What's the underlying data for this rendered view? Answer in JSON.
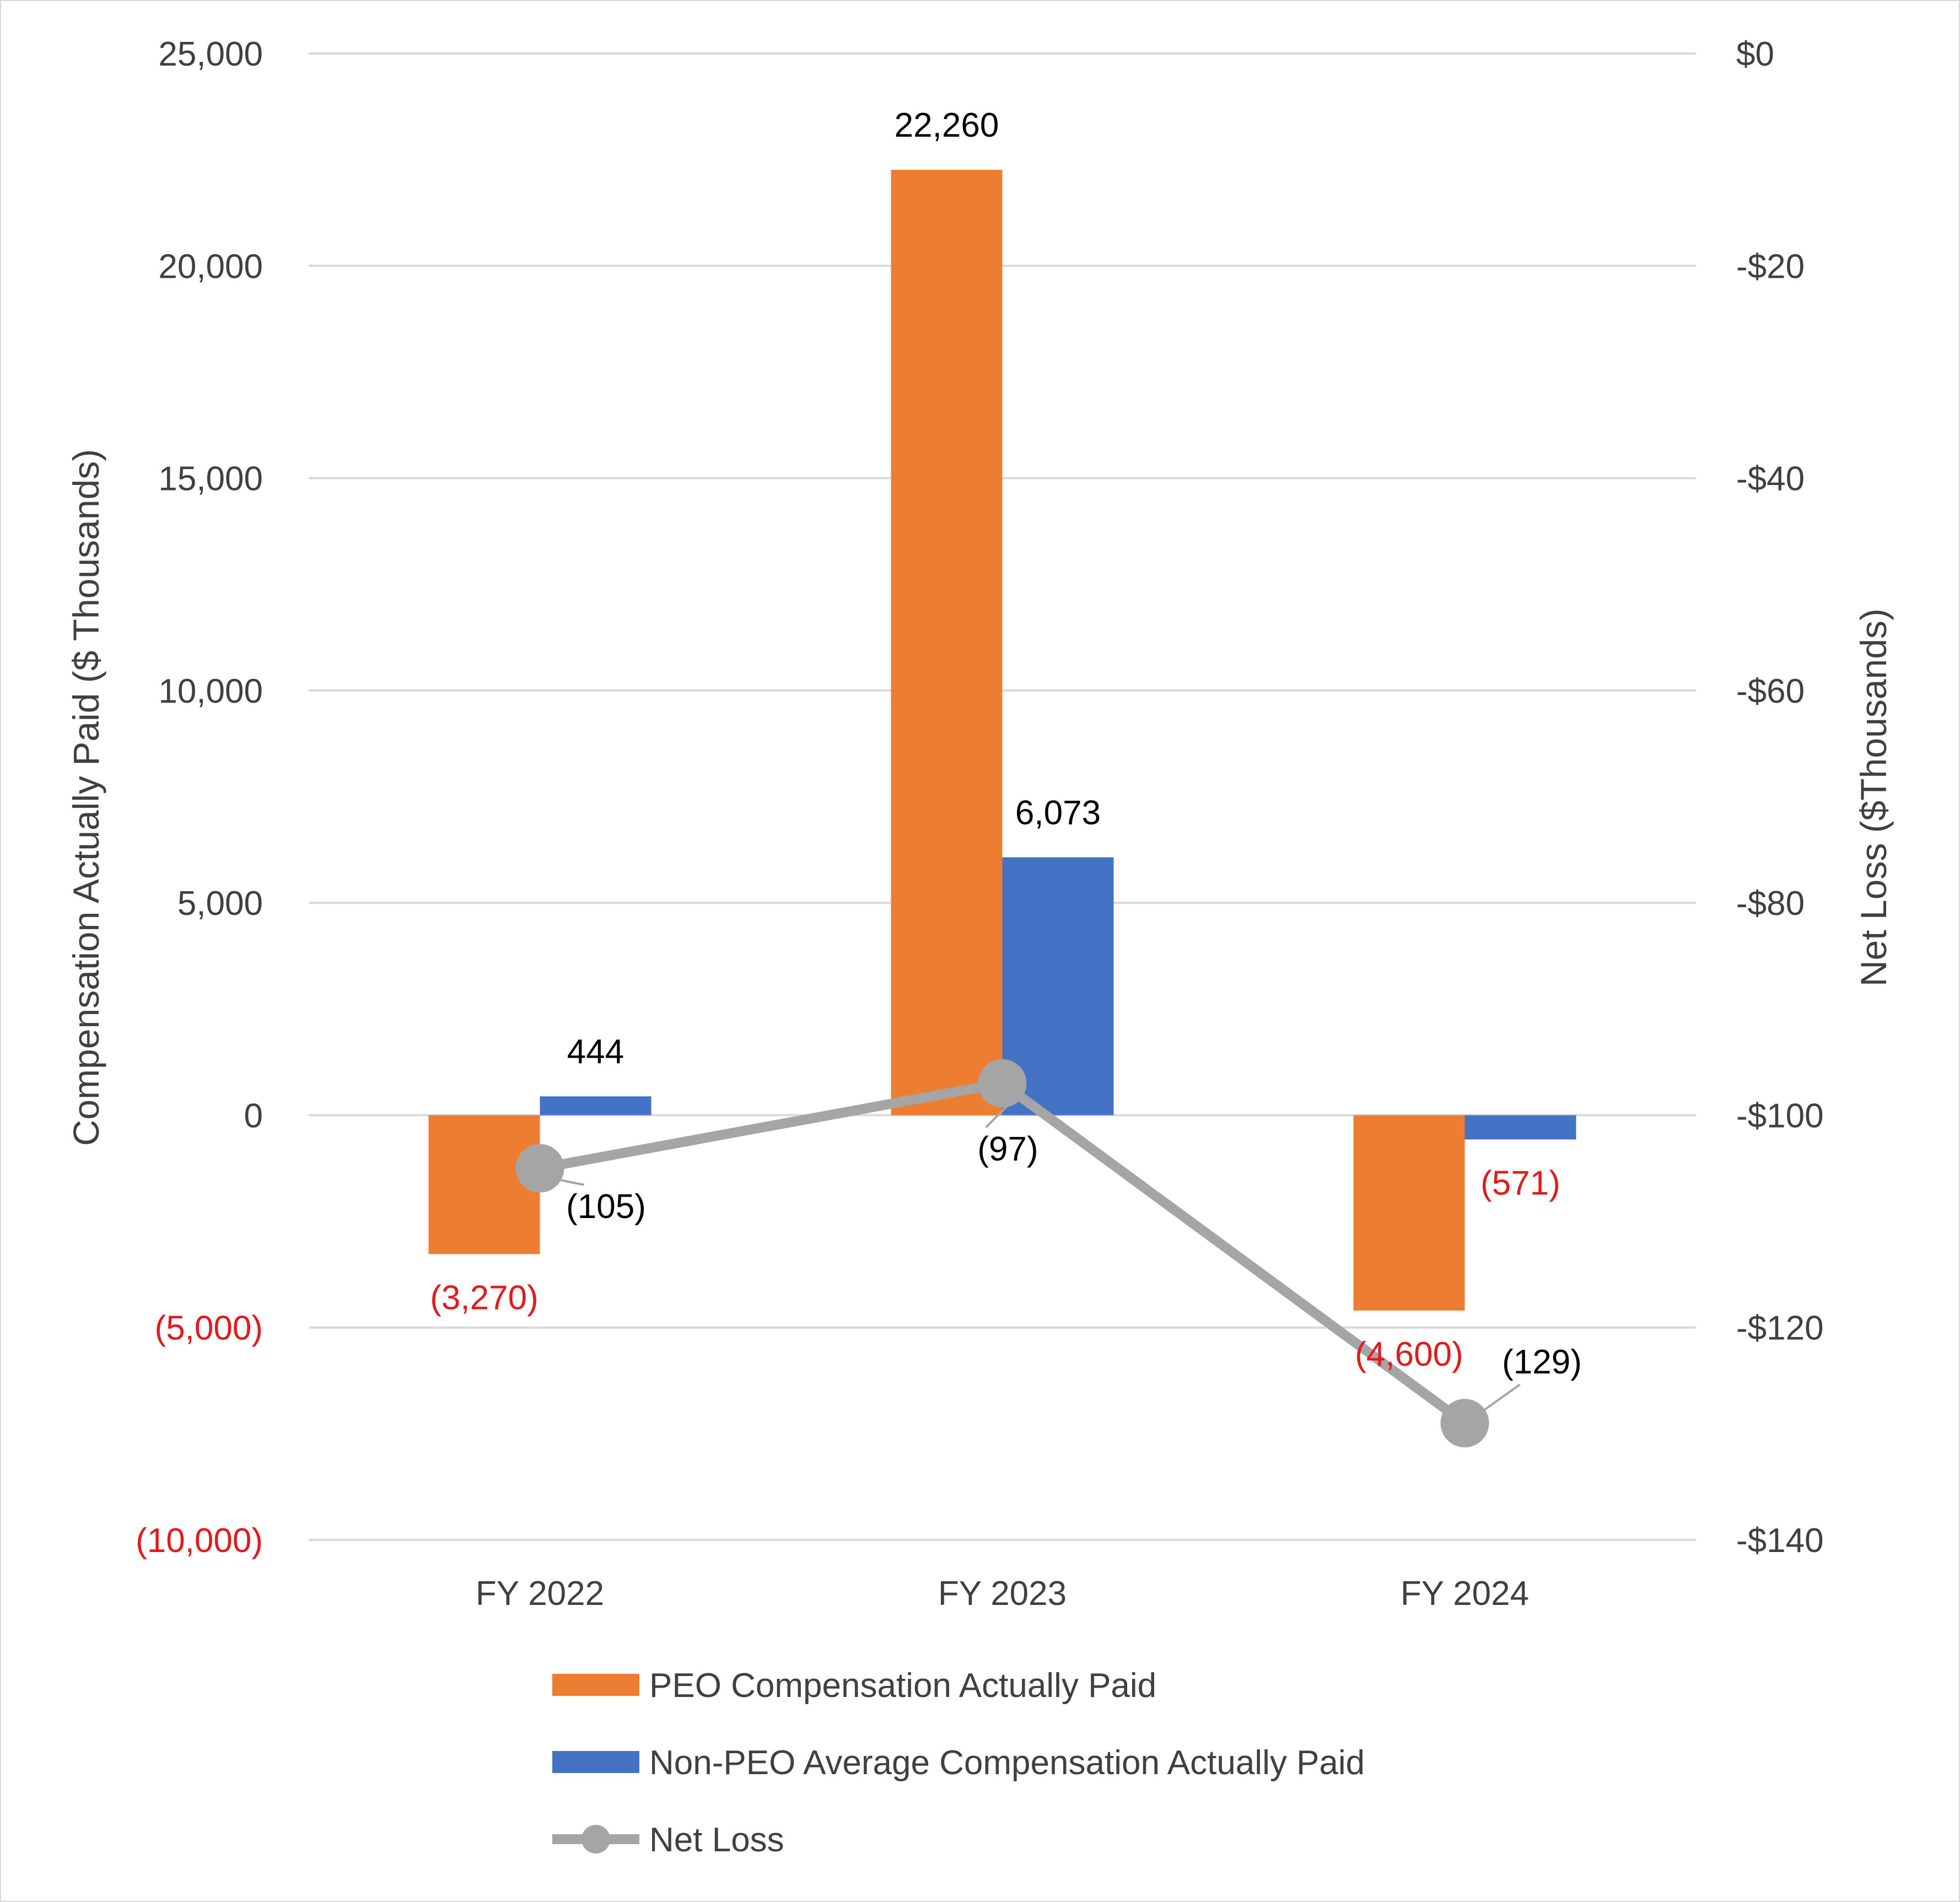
{
  "chart_data": {
    "type": "bar",
    "categories": [
      "FY 2022",
      "FY 2023",
      "FY 2024"
    ],
    "series": [
      {
        "name": "PEO Compensation Actually Paid",
        "kind": "bar",
        "axis": "left",
        "color": "#ED7D31",
        "values": [
          -3270,
          22260,
          -4600
        ],
        "labels": [
          "(3,270)",
          "22,260",
          "(4,600)"
        ]
      },
      {
        "name": "Non-PEO Average Compensation Actually Paid",
        "kind": "bar",
        "axis": "left",
        "color": "#4472C4",
        "values": [
          444,
          6073,
          -571
        ],
        "labels": [
          "444",
          "6,073",
          "(571)"
        ]
      },
      {
        "name": "Net Loss",
        "kind": "line",
        "axis": "right",
        "color": "#A5A5A5",
        "values": [
          -105,
          -97,
          -129
        ],
        "labels": [
          "(105)",
          "(97)",
          "(129)"
        ]
      }
    ],
    "ylabel": "Compensation Actually Paid ($ Thousands)",
    "y2label": "Net Loss ($Thousands)",
    "ylim": [
      -10000,
      25000
    ],
    "y2lim": [
      -140,
      0
    ],
    "yticks": [
      25000,
      20000,
      15000,
      10000,
      5000,
      0,
      -5000,
      -10000
    ],
    "yticklabels": [
      "25,000",
      "20,000",
      "15,000",
      "10,000",
      "5,000",
      "0",
      "(5,000)",
      "(10,000)"
    ],
    "y2ticks": [
      0,
      -20,
      -40,
      -60,
      -80,
      -100,
      -120,
      -140
    ],
    "y2ticklabels": [
      "$0",
      "-$20",
      "-$40",
      "-$60",
      "-$80",
      "-$100",
      "-$120",
      "-$140"
    ],
    "negative_color": "#E31A1C",
    "grid": true,
    "legend_position": "bottom"
  }
}
